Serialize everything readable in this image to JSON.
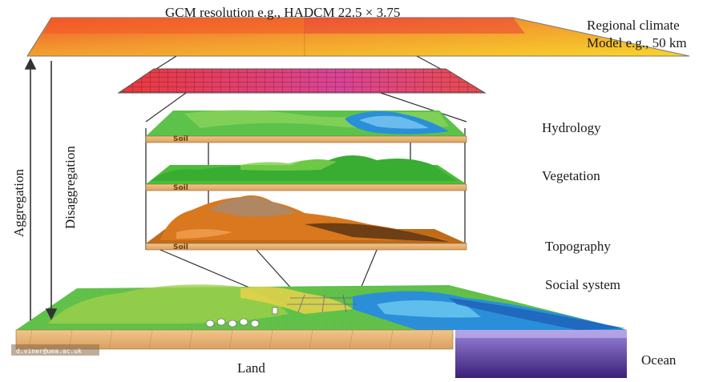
{
  "labels": {
    "gcm": "GCM resolution e.g., HADCM 22.5 × 3.75",
    "regional_line1": "Regional climate",
    "regional_line2": "Model e.g., 50 km",
    "hydrology": "Hydrology",
    "vegetation": "Vegetation",
    "topography": "Topography",
    "social_system": "Social system",
    "ocean": "Ocean",
    "land": "Land",
    "aggregation": "Aggregation",
    "disaggregation": "Disaggregation"
  },
  "layer_text": {
    "soil_1": "Soil",
    "soil_2": "Soil",
    "soil_3": "Soil",
    "credit": "d.viner@uea.ac.uk"
  },
  "colors": {
    "gcm_red": "#e8462c",
    "gcm_orange": "#f39a32",
    "gcm_yellow": "#f7d72a",
    "rcm_red": "#e33a3a",
    "rcm_magenta": "#d43a8c",
    "grass": "#4fbf3c",
    "water": "#2a8fd8",
    "soil": "#e9b77a",
    "topo_orange": "#d9781e",
    "ocean_purple": "#5a3a9a"
  }
}
